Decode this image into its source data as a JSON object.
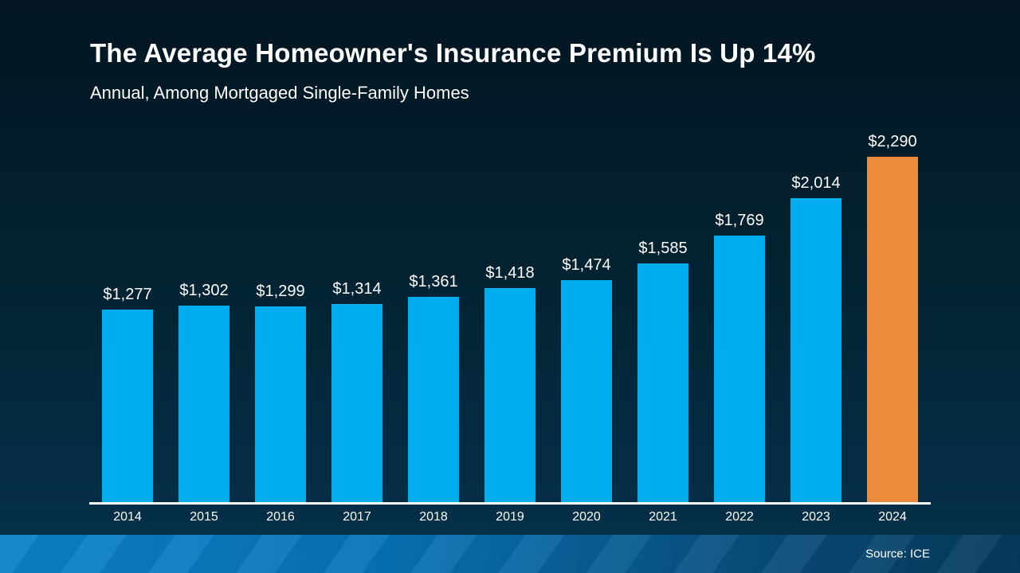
{
  "chart_data": {
    "type": "bar",
    "title": "The Average Homeowner's Insurance Premium Is Up 14%",
    "subtitle": "Annual, Among Mortgaged Single-Family Homes",
    "source": "Source: ICE",
    "categories": [
      "2014",
      "2015",
      "2016",
      "2017",
      "2018",
      "2019",
      "2020",
      "2021",
      "2022",
      "2023",
      "2024"
    ],
    "values": [
      1277,
      1302,
      1299,
      1314,
      1361,
      1418,
      1474,
      1585,
      1769,
      2014,
      2290
    ],
    "value_labels": [
      "$1,277",
      "$1,302",
      "$1,299",
      "$1,314",
      "$1,361",
      "$1,418",
      "$1,474",
      "$1,585",
      "$1,769",
      "$2,014",
      "$2,290"
    ],
    "xlabel": "",
    "ylabel": "",
    "ylim": [
      0,
      2290
    ],
    "grid": false,
    "legend": "none",
    "highlight_index": 10,
    "highlight_category": "2024",
    "bar_color": "#00ADEF",
    "highlight_color": "#EC8B3B",
    "text_color": "#FFFFFF",
    "background_top_color": "#021520",
    "background_bottom_color": "#053049",
    "footer_left_color": "#0B83CA",
    "footer_right_color": "#063A5C",
    "axis_line_color": "#FFFFFF"
  }
}
